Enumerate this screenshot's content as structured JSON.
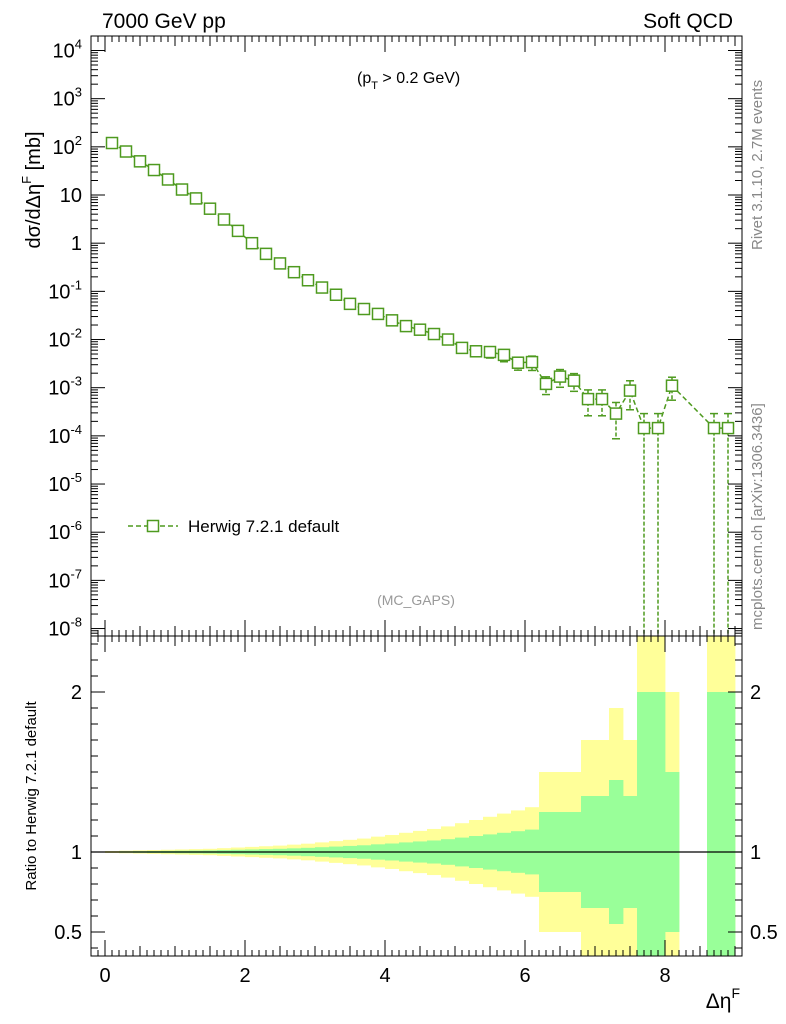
{
  "header": {
    "left": "7000 GeV pp",
    "right": "Soft QCD"
  },
  "annotation": {
    "cut_p": "(p",
    "cut_sub": "T",
    "cut_rest": " > 0.2 GeV)",
    "analysis": "(MC_GAPS)"
  },
  "side_labels": {
    "rivet": "Rivet 3.1.10,  2.7M events",
    "mcplots": "mcplots.cern.ch [arXiv:1306.3436]"
  },
  "colors": {
    "series": "#4e9a1f",
    "band_inner": "#99ff99",
    "band_outer": "#ffff99"
  },
  "chart_data": [
    {
      "type": "line",
      "ylabel": "dσ/dΔη^F [mb]",
      "yscale": "log",
      "ylim": [
        7e-09,
        20000.0
      ],
      "xlim": [
        -0.2,
        9.1
      ],
      "yticks_major": [
        "10^4",
        "10^3",
        "10^2",
        "10",
        "1",
        "10^-1",
        "10^-2",
        "10^-3",
        "10^-4",
        "10^-5",
        "10^-6",
        "10^-7",
        "10^-8"
      ],
      "legend": {
        "entry": "Herwig 7.2.1 default",
        "placement": "middle-left"
      },
      "series": [
        {
          "name": "Herwig 7.2.1 default",
          "marker": "open-square",
          "linestyle": "dashed",
          "x": [
            0.1,
            0.3,
            0.5,
            0.7,
            0.9,
            1.1,
            1.3,
            1.5,
            1.7,
            1.9,
            2.1,
            2.3,
            2.5,
            2.7,
            2.9,
            3.1,
            3.3,
            3.5,
            3.7,
            3.9,
            4.1,
            4.3,
            4.5,
            4.7,
            4.9,
            5.1,
            5.3,
            5.5,
            5.7,
            5.9,
            6.1,
            6.3,
            6.5,
            6.7,
            6.9,
            7.1,
            7.3,
            7.5,
            7.7,
            7.9,
            8.1,
            8.7,
            8.9
          ],
          "y": [
            120,
            80,
            50,
            33,
            21,
            13,
            8.5,
            5.2,
            3.1,
            1.8,
            1.0,
            0.6,
            0.38,
            0.25,
            0.17,
            0.12,
            0.085,
            0.055,
            0.043,
            0.034,
            0.025,
            0.019,
            0.016,
            0.013,
            0.01,
            0.0067,
            0.0057,
            0.0055,
            0.0048,
            0.0033,
            0.0034,
            0.0012,
            0.0017,
            0.0014,
            0.00058,
            0.00058,
            0.00029,
            0.00087,
            0.000145,
            0.000145,
            0.0011,
            0.000145,
            0.000145
          ],
          "yerr": [
            0.02,
            0.02,
            0.02,
            0.02,
            0.02,
            0.02,
            0.03,
            0.03,
            0.03,
            0.03,
            0.03,
            0.04,
            0.04,
            0.05,
            0.05,
            0.06,
            0.07,
            0.08,
            0.09,
            0.1,
            0.11,
            0.13,
            0.14,
            0.16,
            0.18,
            0.2,
            0.22,
            0.25,
            0.28,
            0.3,
            0.33,
            0.4,
            0.4,
            0.4,
            0.55,
            0.55,
            0.7,
            0.6,
            1.0,
            1.0,
            0.5,
            1.0,
            1.0
          ]
        }
      ]
    },
    {
      "type": "area",
      "xlabel": "Δη^F",
      "ylabel": "Ratio to Herwig 7.2.1 default",
      "ylim": [
        0.35,
        2.35
      ],
      "yticks": [
        "0.5",
        "1",
        "2"
      ],
      "xticks": [
        "0",
        "2",
        "4",
        "6",
        "8"
      ],
      "bin_width": 0.2,
      "x": [
        0.1,
        0.3,
        0.5,
        0.7,
        0.9,
        1.1,
        1.3,
        1.5,
        1.7,
        1.9,
        2.1,
        2.3,
        2.5,
        2.7,
        2.9,
        3.1,
        3.3,
        3.5,
        3.7,
        3.9,
        4.1,
        4.3,
        4.5,
        4.7,
        4.9,
        5.1,
        5.3,
        5.5,
        5.7,
        5.9,
        6.1,
        6.3,
        6.5,
        6.7,
        6.9,
        7.1,
        7.3,
        7.5,
        7.7,
        7.9,
        8.1,
        8.7,
        8.9
      ],
      "inner_err": [
        0.003,
        0.004,
        0.005,
        0.006,
        0.007,
        0.008,
        0.009,
        0.01,
        0.012,
        0.014,
        0.016,
        0.018,
        0.02,
        0.023,
        0.026,
        0.03,
        0.034,
        0.038,
        0.042,
        0.048,
        0.053,
        0.06,
        0.066,
        0.072,
        0.08,
        0.09,
        0.1,
        0.11,
        0.12,
        0.13,
        0.14,
        0.25,
        0.25,
        0.25,
        0.35,
        0.35,
        0.45,
        0.35,
        1.0,
        1.0,
        0.5,
        1.0,
        1.0
      ],
      "outer_err": [
        0.006,
        0.008,
        0.01,
        0.012,
        0.014,
        0.016,
        0.018,
        0.02,
        0.024,
        0.028,
        0.032,
        0.036,
        0.04,
        0.046,
        0.052,
        0.06,
        0.068,
        0.076,
        0.084,
        0.096,
        0.106,
        0.12,
        0.132,
        0.144,
        0.16,
        0.18,
        0.2,
        0.22,
        0.24,
        0.26,
        0.28,
        0.5,
        0.5,
        0.5,
        0.7,
        0.7,
        0.9,
        0.7,
        2.0,
        2.0,
        1.0,
        2.0,
        2.0
      ],
      "reference": 1
    }
  ]
}
